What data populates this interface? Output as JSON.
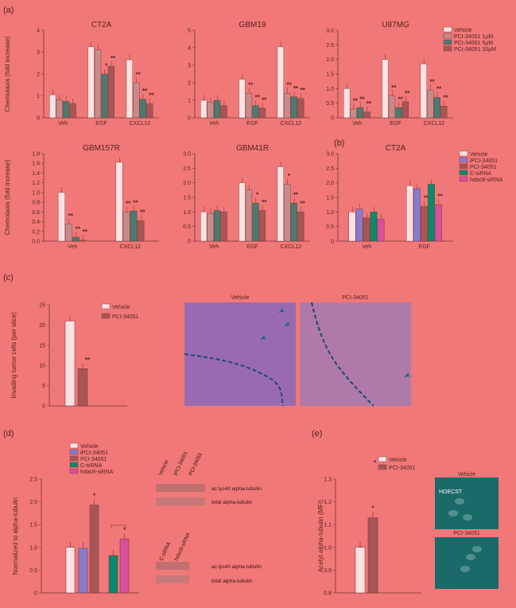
{
  "colors": {
    "vehicle": "#fce2e2",
    "pci1": "#c98a8a",
    "pci5": "#4a7a70",
    "pci10": "#a85555",
    "ipci": "#8a7ad0",
    "pci": "#a85555",
    "csirna": "#0a8a6a",
    "hdac8": "#d8509a"
  },
  "panel_labels": [
    "(a)",
    "(b)",
    "(c)",
    "(d)",
    "(e)"
  ],
  "legend_a": [
    "Vehicle",
    "PCI-34051 1μM",
    "PCI-34051 5μM",
    "PCI-34051 10μM"
  ],
  "legend_b": [
    "Vehicle",
    "iPCI-34051",
    "PCI-34051",
    "C-siRNA",
    "hdac8-siRNA"
  ],
  "legend_c": [
    "Vehicle",
    "PCI-34051"
  ],
  "legend_d": [
    "Vehicle",
    "iPCI-34051",
    "PCI-34051",
    "C-siRNA",
    "hdac8-siRNA"
  ],
  "legend_e": [
    "Vehicle",
    "PCI-34051"
  ],
  "chart_data": [
    {
      "id": "CT2A",
      "type": "bar",
      "title": "CT2A",
      "ylabel": "Chemotaxis (fold increase)",
      "ylim": [
        0,
        4
      ],
      "yticks": [
        0,
        1,
        2,
        3,
        4
      ],
      "categories": [
        "Veh",
        "EGF",
        "CXCL12"
      ],
      "series": [
        {
          "name": "Vehicle",
          "values": [
            1.05,
            3.25,
            2.65
          ]
        },
        {
          "name": "PCI-34051 1μM",
          "values": [
            0.82,
            3.1,
            1.6
          ]
        },
        {
          "name": "PCI-34051 5μM",
          "values": [
            0.75,
            2.0,
            0.85
          ]
        },
        {
          "name": "PCI-34051 10μM",
          "values": [
            0.65,
            2.35,
            0.65
          ]
        }
      ],
      "stars": [
        [
          null,
          null,
          null,
          null
        ],
        [
          null,
          null,
          "*",
          "**"
        ],
        [
          null,
          "**",
          "**",
          "**"
        ]
      ]
    },
    {
      "id": "GBM19",
      "type": "bar",
      "title": "GBM19",
      "ylim": [
        0,
        5
      ],
      "yticks": [
        0,
        1,
        2,
        3,
        4,
        5
      ],
      "categories": [
        "Veh",
        "EGF",
        "CXCL12"
      ],
      "series": [
        {
          "name": "Vehicle",
          "values": [
            1.0,
            2.2,
            4.05
          ]
        },
        {
          "name": "PCI-34051 1μM",
          "values": [
            0.9,
            1.4,
            1.4
          ]
        },
        {
          "name": "PCI-34051 5μM",
          "values": [
            1.0,
            0.7,
            1.2
          ]
        },
        {
          "name": "PCI-34051 10μM",
          "values": [
            0.7,
            0.55,
            1.1
          ]
        }
      ],
      "stars": [
        [
          null,
          null,
          null,
          null
        ],
        [
          null,
          "**",
          "**",
          "**"
        ],
        [
          null,
          "**",
          "**",
          "**"
        ]
      ]
    },
    {
      "id": "U87MG",
      "type": "bar",
      "title": "U87MG",
      "ylim": [
        0,
        3.0
      ],
      "yticks": [
        "0",
        "0.5",
        "1.0",
        "1.5",
        "2.0",
        "2.5",
        "3.0"
      ],
      "categories": [
        "Veh",
        "EGF",
        "CXCL12"
      ],
      "series": [
        {
          "name": "Vehicle",
          "values": [
            1.0,
            2.0,
            1.85
          ]
        },
        {
          "name": "PCI-34051 1μM",
          "values": [
            0.3,
            0.75,
            0.95
          ]
        },
        {
          "name": "PCI-34051 5μM",
          "values": [
            0.35,
            0.35,
            0.7
          ]
        },
        {
          "name": "PCI-34051 10μM",
          "values": [
            0.2,
            0.55,
            0.4
          ]
        }
      ],
      "stars": [
        [
          null,
          "**",
          "**",
          "**"
        ],
        [
          null,
          "**",
          "**",
          "**"
        ],
        [
          null,
          "**",
          "**",
          "**"
        ]
      ]
    },
    {
      "id": "GBM157R",
      "type": "bar",
      "title": "GBM157R",
      "ylabel": "Chemotaxis (fold increase)",
      "ylim": [
        0,
        1.8
      ],
      "yticks": [
        "0.0",
        "0.2",
        "0.4",
        "0.6",
        "0.8",
        "1.0",
        "1.2",
        "1.4",
        "1.6",
        "1.8"
      ],
      "categories": [
        "Veh",
        "CXCL12"
      ],
      "series": [
        {
          "name": "Vehicle",
          "values": [
            1.0,
            1.62
          ]
        },
        {
          "name": "PCI-34051 1μM",
          "values": [
            0.35,
            0.6
          ]
        },
        {
          "name": "PCI-34051 5μM",
          "values": [
            0.08,
            0.62
          ]
        },
        {
          "name": "PCI-34051 10μM",
          "values": [
            0.02,
            0.42
          ]
        }
      ],
      "stars": [
        [
          null,
          "**",
          "**",
          "**"
        ],
        [
          null,
          "**",
          "**",
          "**"
        ]
      ]
    },
    {
      "id": "GBM41R",
      "type": "bar",
      "title": "GBM41R",
      "ylim": [
        0,
        3.0
      ],
      "yticks": [
        "0",
        "0.5",
        "1.0",
        "1.5",
        "2.0",
        "2.5",
        "3.0"
      ],
      "categories": [
        "Veh",
        "EGF",
        "CXCL12"
      ],
      "series": [
        {
          "name": "Vehicle",
          "values": [
            1.0,
            2.0,
            2.55
          ]
        },
        {
          "name": "PCI-34051 1μM",
          "values": [
            0.95,
            1.75,
            1.95
          ]
        },
        {
          "name": "PCI-34051 5μM",
          "values": [
            1.05,
            1.3,
            1.3
          ]
        },
        {
          "name": "PCI-34051 10μM",
          "values": [
            1.0,
            1.05,
            1.0
          ]
        }
      ],
      "stars": [
        [
          null,
          null,
          null,
          null
        ],
        [
          null,
          null,
          "*",
          "**"
        ],
        [
          null,
          "*",
          "**",
          "**"
        ]
      ]
    },
    {
      "id": "CT2A_b",
      "type": "bar",
      "title": "CT2A",
      "ylim": [
        0,
        3.0
      ],
      "yticks": [
        "0",
        "0.5",
        "1.0",
        "1.5",
        "2.0",
        "2.5",
        "3.0"
      ],
      "categories": [
        "Veh",
        "EGF"
      ],
      "series": [
        {
          "name": "Vehicle",
          "values": [
            1.0,
            1.9
          ]
        },
        {
          "name": "iPCI-34051",
          "values": [
            1.1,
            1.8
          ]
        },
        {
          "name": "PCI-34051",
          "values": [
            0.8,
            1.2
          ]
        },
        {
          "name": "C-siRNA",
          "values": [
            1.0,
            1.95
          ]
        },
        {
          "name": "hdac8-siRNA",
          "values": [
            0.75,
            1.25
          ]
        }
      ],
      "stars": [
        [
          null,
          null,
          null,
          null,
          null
        ],
        [
          null,
          null,
          "**",
          null,
          "**"
        ]
      ]
    },
    {
      "id": "c",
      "type": "bar",
      "ylabel": "Invading tumor cells (per slice)",
      "ylim": [
        0,
        25
      ],
      "yticks": [
        "0",
        "5",
        "10",
        "15",
        "20",
        "25"
      ],
      "categories": [
        "Vehicle",
        "PCI-34051"
      ],
      "values": [
        21,
        9.2
      ],
      "stars": [
        null,
        "**"
      ]
    },
    {
      "id": "d",
      "type": "bar",
      "ylabel": "Normalized to alpha-tubulin",
      "ylim": [
        0,
        2.5
      ],
      "yticks": [
        "0",
        "0.5",
        "1.0",
        "1.5",
        "2.0",
        "2.5"
      ],
      "categories": [
        "Vehicle",
        "iPCI-34051",
        "PCI-34051",
        "C-siRNA",
        "hdac8-siRNA"
      ],
      "values": [
        1.0,
        0.98,
        1.93,
        0.82,
        1.18
      ],
      "stars": [
        null,
        null,
        "*",
        null,
        "*"
      ]
    },
    {
      "id": "e",
      "type": "bar",
      "ylabel": "Acetyl alpha-tubulin (MFI)",
      "ylim": [
        0.8,
        1.3
      ],
      "yticks": [
        "0.8",
        "0.9",
        "1.0",
        "1.1",
        "1.2",
        "1.3"
      ],
      "categories": [
        "Vehicle",
        "PCI-34051"
      ],
      "values": [
        1.0,
        1.13
      ],
      "stars": [
        null,
        "*"
      ]
    }
  ],
  "micro_c": {
    "left": "Vehicle",
    "right": "PCI-34051"
  },
  "blot_d": {
    "lanes_top": [
      "Vehicle",
      "iPCI-34051",
      "PCI-34051"
    ],
    "lanes_bottom": [
      "C-siRNA",
      "hdac8-siRNA"
    ],
    "band1": "ac lys40 alpha-tubulin",
    "band2": "total alpha-tubulin"
  },
  "micro_e": {
    "top": "Vehicle",
    "bottom": "PCI-34051",
    "stain": "HOECST"
  }
}
